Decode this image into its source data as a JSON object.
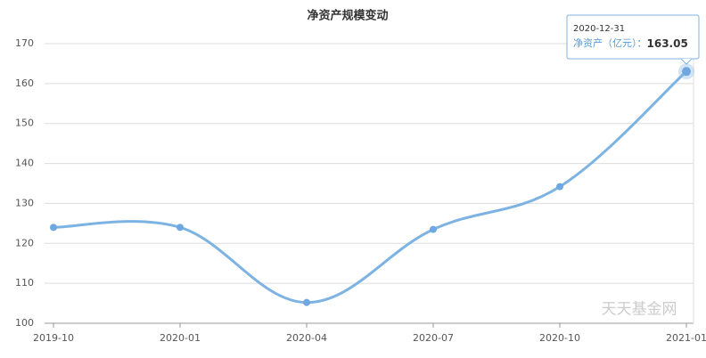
{
  "chart_data": {
    "type": "line",
    "title": "净资产规模变动",
    "categories": [
      "2019-10",
      "2020-01",
      "2020-04",
      "2020-07",
      "2020-10",
      "2021-01"
    ],
    "series": [
      {
        "name": "净资产（亿元）",
        "color": "#7db3e2",
        "values": [
          124,
          124,
          105.2,
          123.5,
          134.2,
          163.05
        ]
      }
    ],
    "ylim": [
      100,
      170
    ],
    "yticks": [
      100,
      110,
      120,
      130,
      140,
      150,
      160,
      170
    ],
    "grid": true,
    "tooltip": {
      "date": "2020-12-31",
      "separator": "："
    },
    "watermark": "天天基金网"
  }
}
